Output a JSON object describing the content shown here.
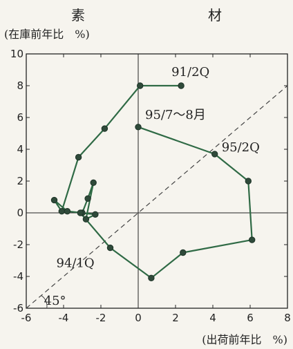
{
  "chart_data": {
    "type": "line",
    "title": "素　　材",
    "ylabel": "(在庫前年比　%)",
    "xlabel": "(出荷前年比　%)",
    "xlim": [
      -6,
      8
    ],
    "ylim": [
      -6,
      10
    ],
    "xticks": [
      -6,
      -4,
      -2,
      0,
      2,
      4,
      6,
      8
    ],
    "yticks": [
      -6,
      -4,
      -2,
      0,
      2,
      4,
      6,
      8,
      10
    ],
    "series": [
      {
        "x": [
          2.3,
          0.1,
          -1.8,
          -3.2,
          -4.1,
          -4.5,
          -3.8,
          -3.0,
          -2.7,
          -2.4,
          -2.8,
          -2.3,
          -3.1,
          -1.5,
          0.7,
          2.4,
          6.1,
          5.9,
          4.1,
          0.0
        ],
        "y": [
          8.0,
          8.0,
          5.3,
          3.5,
          0.1,
          0.8,
          0.1,
          0.0,
          0.9,
          1.9,
          -0.4,
          -0.1,
          0.0,
          -2.2,
          -4.1,
          -2.5,
          -1.7,
          2.0,
          3.7,
          5.4
        ]
      }
    ],
    "reference_line": {
      "slope": 1,
      "style": "dashed",
      "label": "45°"
    },
    "annotations": [
      {
        "text": "91/2Q",
        "x": 2.3,
        "y": 8.0
      },
      {
        "text": "95/7～8月",
        "x": 0.0,
        "y": 5.4
      },
      {
        "text": "95/2Q",
        "x": 4.1,
        "y": 3.7
      },
      {
        "text": "94/1Q",
        "x": -1.5,
        "y": -2.2
      }
    ]
  }
}
